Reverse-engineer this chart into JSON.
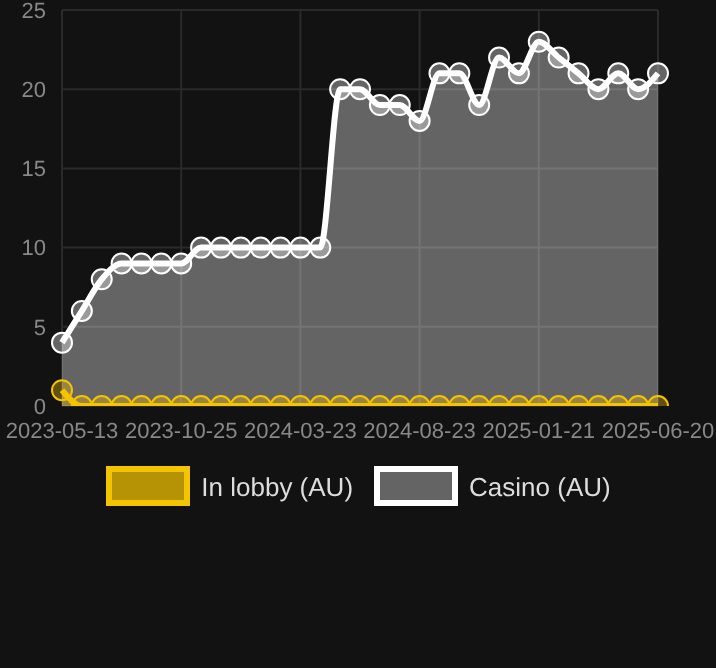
{
  "chart_data": {
    "type": "area",
    "categories": [
      "2023-05-13",
      null,
      null,
      null,
      null,
      null,
      "2023-10-25",
      null,
      null,
      null,
      null,
      null,
      "2024-03-23",
      null,
      null,
      null,
      null,
      null,
      "2024-08-23",
      null,
      null,
      null,
      null,
      null,
      "2025-01-21",
      null,
      null,
      null,
      null,
      null,
      "2025-06-20"
    ],
    "series": [
      {
        "name": "In lobby (AU)",
        "color": "#f5c400",
        "values": [
          1,
          0,
          0,
          0,
          0,
          0,
          0,
          0,
          0,
          0,
          0,
          0,
          0,
          0,
          0,
          0,
          0,
          0,
          0,
          0,
          0,
          0,
          0,
          0,
          0,
          0,
          0,
          0,
          0,
          0,
          0
        ]
      },
      {
        "name": "Casino (AU)",
        "color": "#ffffff",
        "values": [
          4,
          6,
          8,
          9,
          9,
          9,
          9,
          10,
          10,
          10,
          10,
          10,
          10,
          10,
          20,
          20,
          19,
          19,
          18,
          21,
          21,
          19,
          22,
          21,
          23,
          22,
          21,
          20,
          21,
          20,
          21
        ]
      }
    ],
    "ylim": [
      0,
      25
    ],
    "yticks": [
      0,
      5,
      10,
      15,
      20,
      25
    ],
    "grid": true,
    "legend": "bottom",
    "marker": "circle",
    "line_style": "solid"
  }
}
